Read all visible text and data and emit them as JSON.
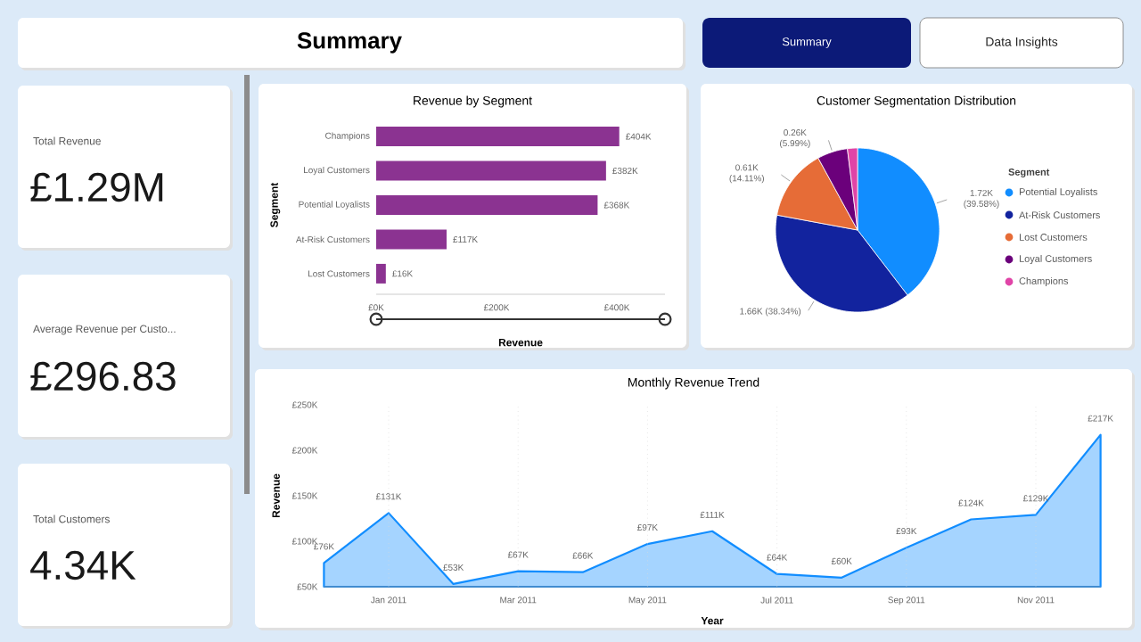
{
  "chart_data": [
    {
      "type": "other",
      "title": "Summary",
      "annotations": [
        "Summary",
        "Data Insights"
      ]
    },
    {
      "type": "other",
      "title": "Total Revenue",
      "annotations": [
        "£1.29M"
      ]
    },
    {
      "type": "other",
      "title": "Average Revenue per Custo...",
      "annotations": [
        "£296.83"
      ]
    },
    {
      "type": "other",
      "title": "Total Customers",
      "annotations": [
        "4.34K"
      ]
    },
    {
      "type": "bar",
      "orientation": "horizontal",
      "title": "Revenue by Segment",
      "xlabel": "Revenue",
      "ylabel": "Segment",
      "categories": [
        "Champions",
        "Loyal Customers",
        "Potential Loyalists",
        "At-Risk Customers",
        "Lost Customers"
      ],
      "values": [
        404,
        382,
        368,
        117,
        16
      ],
      "color": "#8b3391",
      "value_labels": [
        "£404K",
        "£382K",
        "£368K",
        "£117K",
        "£16K"
      ],
      "xlim": [
        0,
        480
      ],
      "xticks": [
        {
          "value": 0,
          "label": "£0K"
        },
        {
          "value": 200,
          "label": "£200K"
        },
        {
          "value": 400,
          "label": "£400K"
        }
      ]
    },
    {
      "type": "pie",
      "title": "Customer Segmentation Distribution",
      "legend_title": "Segment",
      "legend": "right",
      "categories": [
        "Potential Loyalists",
        "At-Risk Customers",
        "Lost Customers",
        "Loyal Customers",
        "Champions"
      ],
      "values": [
        39.58,
        38.34,
        14.11,
        5.99,
        1.98
      ],
      "colors": [
        "#118dff",
        "#12239e",
        "#e66c37",
        "#6b007b",
        "#e044a7"
      ],
      "value_labels": [
        "1.72K (39.58%)",
        "1.66K (38.34%)",
        "0.61K (14.11%)",
        "0.26K (5.99%)",
        null
      ]
    },
    {
      "type": "area",
      "title": "Monthly Revenue Trend",
      "xlabel": "Year",
      "ylabel": "Revenue",
      "x": [
        "2010-12",
        "2011-01",
        "2011-02",
        "2011-03",
        "2011-04",
        "2011-05",
        "2011-06",
        "2011-07",
        "2011-08",
        "2011-09",
        "2011-10",
        "2011-11",
        "2011-12"
      ],
      "values": [
        76,
        131,
        53,
        67,
        66,
        97,
        111,
        64,
        60,
        93,
        124,
        129,
        217
      ],
      "value_labels": [
        "£76K",
        "£131K",
        "£53K",
        "£67K",
        "£66K",
        "£97K",
        "£111K",
        "£64K",
        "£60K",
        "£93K",
        "£124K",
        "£129K",
        "£217K"
      ],
      "color": "#118dff",
      "grid": "x",
      "xlim": [
        "2010-12",
        "2011-12"
      ],
      "ylim": [
        50,
        250
      ],
      "xticks": [
        {
          "value": "2011-01",
          "label": "Jan 2011"
        },
        {
          "value": "2011-03",
          "label": "Mar 2011"
        },
        {
          "value": "2011-05",
          "label": "May 2011"
        },
        {
          "value": "2011-07",
          "label": "Jul 2011"
        },
        {
          "value": "2011-09",
          "label": "Sep 2011"
        },
        {
          "value": "2011-11",
          "label": "Nov 2011"
        }
      ],
      "yticks": [
        {
          "value": 50,
          "label": "£50K"
        },
        {
          "value": 100,
          "label": "£100K"
        },
        {
          "value": 150,
          "label": "£150K"
        },
        {
          "value": 200,
          "label": "£200K"
        },
        {
          "value": 250,
          "label": "£250K"
        }
      ]
    }
  ]
}
